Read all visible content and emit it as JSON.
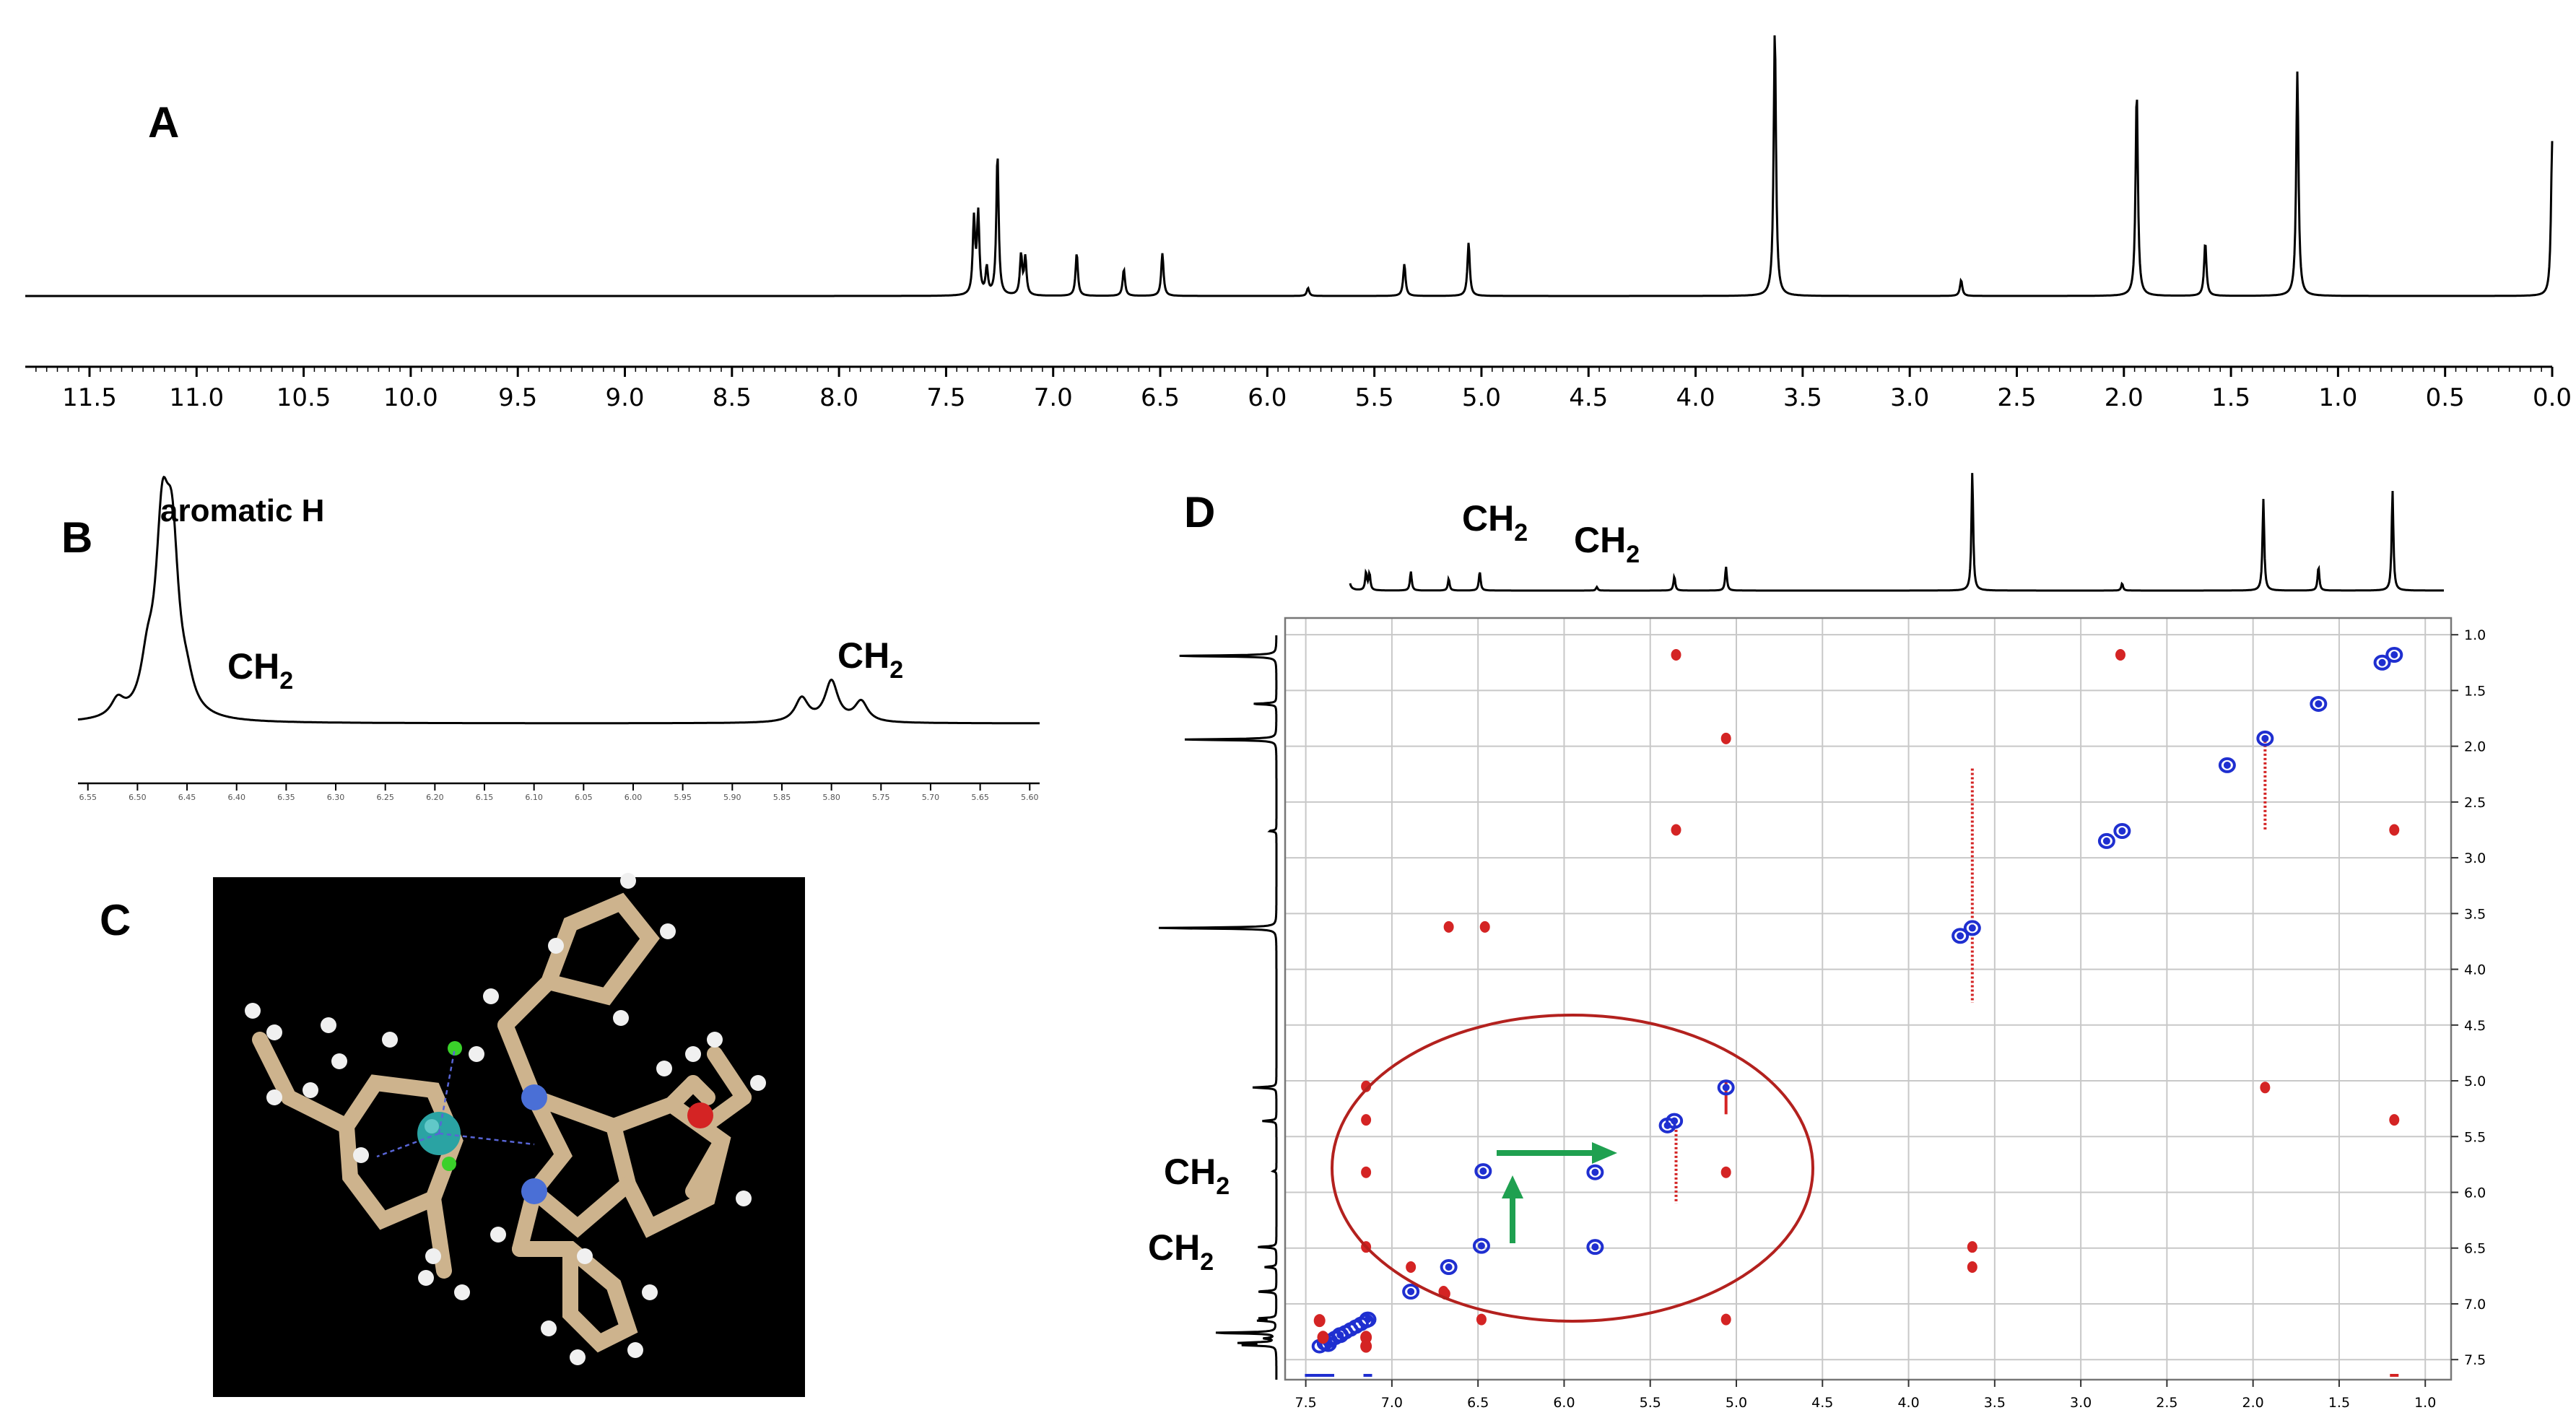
{
  "panels": {
    "A": {
      "letter": "A"
    },
    "B": {
      "letter": "B",
      "annotations": [
        "aromatic H",
        "CH2",
        "CH2"
      ]
    },
    "C": {
      "letter": "C"
    },
    "D": {
      "letter": "D",
      "annotations": [
        "CH2",
        "CH2",
        "CH2",
        "CH2"
      ]
    }
  },
  "chart_data": [
    {
      "id": "A",
      "type": "line",
      "xlabel": "",
      "ylabel": "",
      "xlim": [
        11.8,
        0.0
      ],
      "x_reversed": true,
      "x_ticks": [
        "11.5",
        "11.0",
        "10.5",
        "10.0",
        "9.5",
        "9.0",
        "8.5",
        "8.0",
        "7.5",
        "7.0",
        "6.5",
        "6.0",
        "5.5",
        "5.0",
        "4.5",
        "4.0",
        "3.5",
        "3.0",
        "2.5",
        "2.0",
        "1.5",
        "1.0",
        "0.5",
        "0.0"
      ],
      "peaks": [
        {
          "ppm": 7.37,
          "h": 0.28
        },
        {
          "ppm": 7.35,
          "h": 0.3
        },
        {
          "ppm": 7.31,
          "h": 0.1
        },
        {
          "ppm": 7.26,
          "h": 0.53
        },
        {
          "ppm": 7.15,
          "h": 0.15
        },
        {
          "ppm": 7.13,
          "h": 0.14
        },
        {
          "ppm": 6.89,
          "h": 0.16
        },
        {
          "ppm": 6.67,
          "h": 0.1
        },
        {
          "ppm": 6.49,
          "h": 0.16
        },
        {
          "ppm": 5.81,
          "h": 0.03
        },
        {
          "ppm": 5.36,
          "h": 0.12
        },
        {
          "ppm": 5.06,
          "h": 0.2
        },
        {
          "ppm": 3.63,
          "h": 1.0
        },
        {
          "ppm": 2.76,
          "h": 0.06
        },
        {
          "ppm": 1.94,
          "h": 0.77
        },
        {
          "ppm": 1.62,
          "h": 0.2
        },
        {
          "ppm": 1.19,
          "h": 0.84
        },
        {
          "ppm": 0.0,
          "h": 0.58
        }
      ]
    },
    {
      "id": "B",
      "type": "line",
      "xlim": [
        6.56,
        5.59
      ],
      "x_reversed": true,
      "x_ticks": [
        "6.55",
        "6.50",
        "6.45",
        "6.40",
        "6.35",
        "6.30",
        "6.25",
        "6.20",
        "6.15",
        "6.10",
        "6.05",
        "6.00",
        "5.95",
        "5.90",
        "5.85",
        "5.80",
        "5.75",
        "5.70",
        "5.65",
        "5.60"
      ],
      "peaks": [
        {
          "ppm": 6.52,
          "h": 0.1
        },
        {
          "ppm": 6.49,
          "h": 0.25
        },
        {
          "ppm": 6.475,
          "h": 1.0
        },
        {
          "ppm": 6.465,
          "h": 0.9
        },
        {
          "ppm": 6.45,
          "h": 0.12
        },
        {
          "ppm": 5.83,
          "h": 0.14
        },
        {
          "ppm": 5.8,
          "h": 0.24
        },
        {
          "ppm": 5.77,
          "h": 0.12
        }
      ]
    },
    {
      "id": "D",
      "type": "scatter",
      "xlim": [
        7.62,
        0.85
      ],
      "ylim": [
        0.85,
        7.68
      ],
      "x_ticks": [
        "7.5",
        "7.0",
        "6.5",
        "6.0",
        "5.5",
        "5.0",
        "4.5",
        "4.0",
        "3.5",
        "3.0",
        "2.5",
        "2.0",
        "1.5",
        "1.0"
      ],
      "y_ticks": [
        "1.0",
        "1.5",
        "2.0",
        "2.5",
        "3.0",
        "3.5",
        "4.0",
        "4.5",
        "5.0",
        "5.5",
        "6.0",
        "6.5",
        "7.0",
        "7.5"
      ],
      "grid": true,
      "diag_peaks_blue": [
        [
          1.18,
          1.18
        ],
        [
          1.25,
          1.25
        ],
        [
          1.62,
          1.62
        ],
        [
          1.93,
          1.93
        ],
        [
          2.76,
          2.76
        ],
        [
          2.85,
          2.85
        ],
        [
          3.63,
          3.63
        ],
        [
          3.7,
          3.7
        ],
        [
          5.06,
          5.06
        ],
        [
          5.36,
          5.36
        ],
        [
          5.4,
          5.4
        ],
        [
          5.82,
          5.82
        ],
        [
          6.48,
          6.48
        ],
        [
          6.67,
          6.67
        ],
        [
          6.89,
          6.89
        ],
        [
          7.14,
          7.14
        ],
        [
          7.3,
          7.28
        ],
        [
          7.37,
          7.36
        ],
        [
          2.15,
          2.17
        ],
        [
          6.47,
          5.81
        ],
        [
          5.82,
          6.49
        ]
      ],
      "cross_peaks_red": [
        [
          5.35,
          1.18
        ],
        [
          2.77,
          1.18
        ],
        [
          5.06,
          1.93
        ],
        [
          5.35,
          2.75
        ],
        [
          1.18,
          2.75
        ],
        [
          6.67,
          3.62
        ],
        [
          6.46,
          3.62
        ],
        [
          1.93,
          5.06
        ],
        [
          1.18,
          5.35
        ],
        [
          7.15,
          5.05
        ],
        [
          7.15,
          5.35
        ],
        [
          7.15,
          5.82
        ],
        [
          5.06,
          5.82
        ],
        [
          7.15,
          6.49
        ],
        [
          3.63,
          6.49
        ],
        [
          3.63,
          6.67
        ],
        [
          6.48,
          7.14
        ],
        [
          5.06,
          7.14
        ],
        [
          6.89,
          6.67
        ],
        [
          6.7,
          6.89
        ],
        [
          6.69,
          6.91
        ]
      ]
    }
  ],
  "colors": {
    "spectrum": "#000000",
    "diag_blue": "#1f2fd0",
    "cross_red": "#d42424",
    "ellipse": "#b3211e",
    "arrow": "#1fa050",
    "grid": "#c8c8c8",
    "molecule_bg": "#000000"
  }
}
